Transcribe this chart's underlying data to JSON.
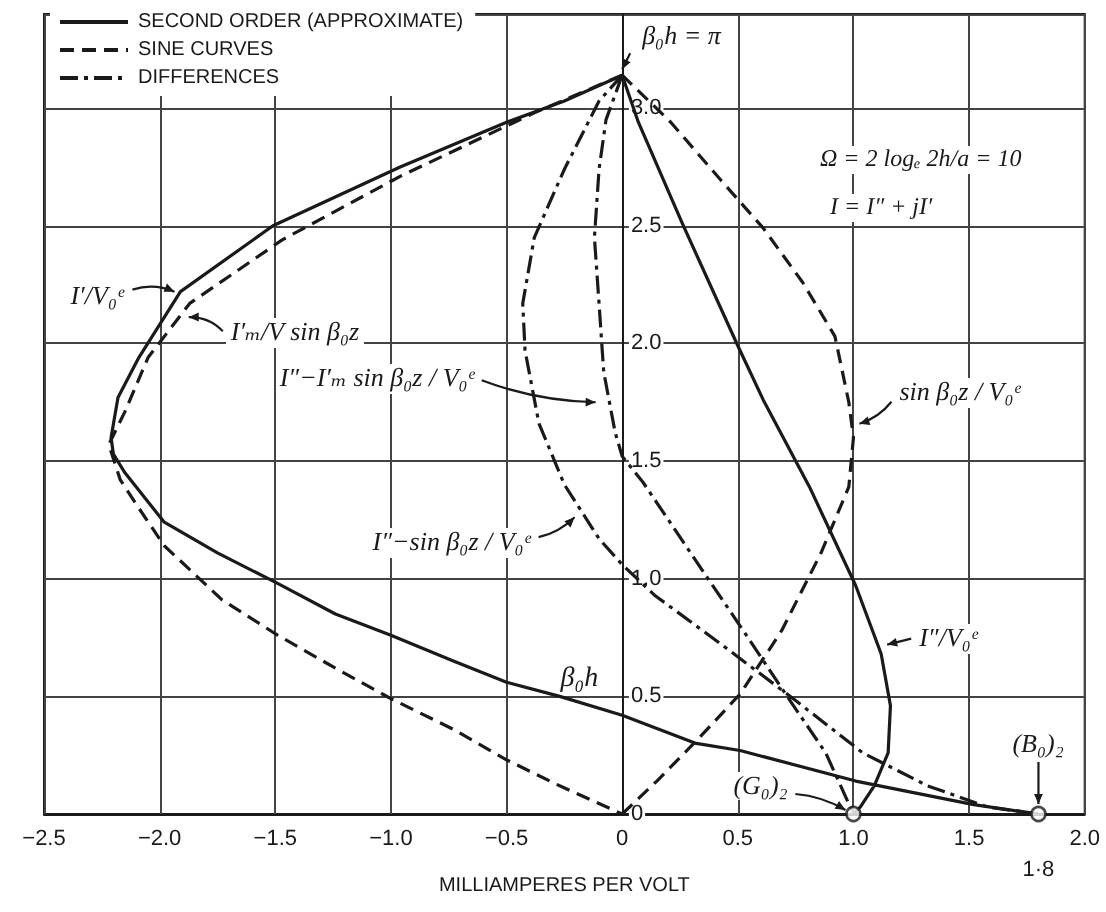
{
  "chart_data": {
    "type": "line",
    "xlabel": "MILLIAMPERES PER VOLT",
    "ylabel": "β₀h",
    "xlim": [
      -2.5,
      2.0
    ],
    "ylim": [
      0,
      3.4
    ],
    "xticks": [
      {
        "value": -2.5,
        "label": "−2.5"
      },
      {
        "value": -2.0,
        "label": "−2.0"
      },
      {
        "value": -1.5,
        "label": "−1.5"
      },
      {
        "value": -1.0,
        "label": "−1.0"
      },
      {
        "value": -0.5,
        "label": "−0.5"
      },
      0,
      0.5,
      {
        "value": 1.0,
        "label": "1.0"
      },
      1.5,
      {
        "value": 2.0,
        "label": "2.0"
      }
    ],
    "yticks": [
      0,
      0.5,
      {
        "value": 1.0,
        "label": "1.0"
      },
      1.5,
      {
        "value": 2.0,
        "label": "2.0"
      },
      2.5,
      {
        "value": 3.0,
        "label": "3.0"
      }
    ],
    "grid": true,
    "legend": "top left",
    "marker": "none",
    "series": [
      {
        "name": "SECOND ORDER (APPROXIMATE)",
        "color": "#1a1a1a",
        "line_style": "solid",
        "x": [
          0,
          -0.25,
          -0.5,
          -0.96,
          -1.51,
          -1.91,
          -2.09,
          -2.18,
          -2.21,
          -2.2,
          -2.15,
          -1.98,
          -1.75,
          -1.49,
          -1.24,
          -1.0,
          -0.73,
          -0.5,
          -0.27,
          0,
          0.32,
          0.51,
          1.01,
          1.52,
          1.8,
          null,
          0,
          0.07,
          0.26,
          0.5,
          0.61,
          0.81,
          1.01,
          1.12,
          1.16,
          1.15,
          1.09,
          1.03,
          1.0
        ],
        "values": [
          3.14,
          3.03,
          2.94,
          2.75,
          2.5,
          2.22,
          1.94,
          1.77,
          1.6,
          1.53,
          1.45,
          1.24,
          1.11,
          0.98,
          0.85,
          0.76,
          0.65,
          0.56,
          0.5,
          0.42,
          0.3,
          0.27,
          0.14,
          0.04,
          0,
          null,
          3.14,
          2.94,
          2.51,
          1.99,
          1.76,
          1.39,
          0.97,
          0.68,
          0.46,
          0.26,
          0.12,
          0.03,
          0
        ]
      },
      {
        "name": "SINE CURVES",
        "color": "#1a1a1a",
        "line_style": "dashed",
        "x": [
          0,
          -0.38,
          -0.96,
          -1.47,
          -1.87,
          -2.05,
          -2.15,
          -2.22,
          -2.17,
          -2.09,
          -1.98,
          -1.73,
          -1.49,
          -1.24,
          -1.0,
          -0.73,
          -0.5,
          -0.27,
          0,
          null,
          0,
          0.15,
          0.32,
          0.51,
          0.69,
          0.86,
          0.98,
          1.0,
          0.98,
          0.92,
          0.78,
          0.61,
          0.43,
          0.21,
          0
        ],
        "values": [
          3.14,
          2.98,
          2.71,
          2.44,
          2.17,
          1.94,
          1.71,
          1.57,
          1.42,
          1.3,
          1.14,
          0.91,
          0.76,
          0.62,
          0.49,
          0.36,
          0.23,
          0.12,
          0,
          null,
          0,
          0.14,
          0.31,
          0.51,
          0.78,
          1.11,
          1.39,
          1.6,
          1.75,
          2.03,
          2.26,
          2.49,
          2.69,
          2.94,
          3.14
        ]
      },
      {
        "name": "DIFFERENCES",
        "color": "#1a1a1a",
        "line_style": "dashdot",
        "x": [
          0,
          -0.1,
          -0.25,
          -0.38,
          -0.43,
          -0.42,
          -0.36,
          -0.25,
          -0.1,
          0,
          0.14,
          0.43,
          0.74,
          1.04,
          1.32,
          1.58,
          1.8,
          null,
          0,
          -0.07,
          -0.1,
          -0.12,
          -0.1,
          -0.08,
          -0.03,
          0,
          0.09,
          0.33,
          0.53,
          0.72,
          0.88,
          1.0
        ],
        "values": [
          3.14,
          3.03,
          2.74,
          2.45,
          2.17,
          1.97,
          1.66,
          1.4,
          1.17,
          1.06,
          0.93,
          0.72,
          0.49,
          0.26,
          0.12,
          0.03,
          0,
          null,
          3.14,
          2.95,
          2.74,
          2.45,
          2.17,
          1.88,
          1.62,
          1.52,
          1.41,
          1.06,
          0.77,
          0.49,
          0.26,
          0
        ]
      },
      {
        "type": "scatter",
        "color": "#1a1a1a",
        "marker": "circle",
        "x": [
          1.0,
          1.8
        ],
        "values": [
          0,
          0
        ]
      }
    ],
    "annotations": [
      {
        "text": "β₀h = π",
        "x": 0,
        "y": 3.14
      },
      "Ω = 2 logₑ 2h/a = 10",
      "I = I″ + jI′",
      {
        "text": "I′/V₀ᵉ",
        "x": -1.91,
        "y": 2.22
      },
      {
        "text": "I′ₘ/V sin β₀z",
        "x": -1.9,
        "y": 2.12
      },
      {
        "text": "I″−I′ₘ sin β₀z / V₀ᵉ",
        "x": -0.08,
        "y": 1.75
      },
      {
        "text": "I″−sin β₀z / V₀ᵉ",
        "x": -0.18,
        "y": 1.27
      },
      {
        "text": "sin β₀z / V₀ᵉ",
        "x": 1.0,
        "y": 1.65
      },
      {
        "text": "I″/V₀ᵉ",
        "x": 1.12,
        "y": 0.72
      },
      {
        "text": "(G₀)₂",
        "x": 1.0,
        "y": 0
      },
      {
        "text": "(B₀)₂",
        "x": 1.8,
        "y": 0
      },
      {
        "text": "1·8",
        "x": 1.8,
        "y": 0
      }
    ]
  }
}
